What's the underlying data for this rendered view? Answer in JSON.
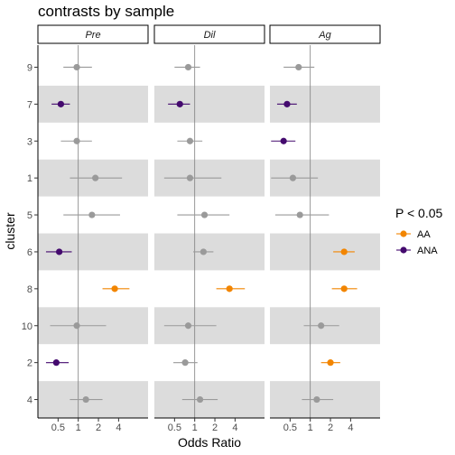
{
  "chart_data": {
    "type": "forest",
    "title": "contrasts by sample",
    "xlabel": "Odds Ratio",
    "ylabel": "cluster",
    "x_scale": "log2",
    "x_ticks": [
      0.5,
      1,
      2,
      4
    ],
    "x_tick_labels": [
      "0.5",
      "1",
      "2",
      "4"
    ],
    "xlim": [
      0.25,
      11
    ],
    "reference_line": 1,
    "clusters": [
      "9",
      "7",
      "3",
      "1",
      "5",
      "6",
      "8",
      "10",
      "2",
      "4"
    ],
    "shaded_rows": [
      "7",
      "1",
      "6",
      "10",
      "4"
    ],
    "panels": [
      {
        "name": "Pre",
        "points": [
          {
            "cluster": "9",
            "or": 0.95,
            "lo": 0.6,
            "hi": 1.6,
            "group": "ns"
          },
          {
            "cluster": "7",
            "or": 0.55,
            "lo": 0.4,
            "hi": 0.75,
            "group": "ANA"
          },
          {
            "cluster": "3",
            "or": 0.95,
            "lo": 0.55,
            "hi": 1.6,
            "group": "ns"
          },
          {
            "cluster": "1",
            "or": 1.8,
            "lo": 0.75,
            "hi": 4.5,
            "group": "ns"
          },
          {
            "cluster": "5",
            "or": 1.6,
            "lo": 0.6,
            "hi": 4.2,
            "group": "ns"
          },
          {
            "cluster": "6",
            "or": 0.52,
            "lo": 0.33,
            "hi": 0.8,
            "group": "ANA"
          },
          {
            "cluster": "8",
            "or": 3.5,
            "lo": 2.3,
            "hi": 5.8,
            "group": "AA"
          },
          {
            "cluster": "10",
            "or": 0.95,
            "lo": 0.38,
            "hi": 2.6,
            "group": "ns"
          },
          {
            "cluster": "2",
            "or": 0.47,
            "lo": 0.33,
            "hi": 0.72,
            "group": "ANA"
          },
          {
            "cluster": "4",
            "or": 1.3,
            "lo": 0.75,
            "hi": 2.3,
            "group": "ns"
          }
        ]
      },
      {
        "name": "Dil",
        "points": [
          {
            "cluster": "9",
            "or": 0.8,
            "lo": 0.5,
            "hi": 1.2,
            "group": "ns"
          },
          {
            "cluster": "7",
            "or": 0.6,
            "lo": 0.4,
            "hi": 0.85,
            "group": "ANA"
          },
          {
            "cluster": "3",
            "or": 0.85,
            "lo": 0.55,
            "hi": 1.3,
            "group": "ns"
          },
          {
            "cluster": "1",
            "or": 0.85,
            "lo": 0.35,
            "hi": 2.5,
            "group": "ns"
          },
          {
            "cluster": "5",
            "or": 1.4,
            "lo": 0.55,
            "hi": 3.3,
            "group": "ns"
          },
          {
            "cluster": "6",
            "or": 1.35,
            "lo": 0.95,
            "hi": 1.9,
            "group": "ns"
          },
          {
            "cluster": "8",
            "or": 3.3,
            "lo": 2.1,
            "hi": 5.6,
            "group": "AA"
          },
          {
            "cluster": "10",
            "or": 0.8,
            "lo": 0.35,
            "hi": 2.1,
            "group": "ns"
          },
          {
            "cluster": "2",
            "or": 0.72,
            "lo": 0.48,
            "hi": 1.1,
            "group": "ns"
          },
          {
            "cluster": "4",
            "or": 1.2,
            "lo": 0.65,
            "hi": 2.2,
            "group": "ns"
          }
        ]
      },
      {
        "name": "Ag",
        "points": [
          {
            "cluster": "9",
            "or": 0.67,
            "lo": 0.4,
            "hi": 1.15,
            "group": "ns"
          },
          {
            "cluster": "7",
            "or": 0.45,
            "lo": 0.32,
            "hi": 0.63,
            "group": "ANA"
          },
          {
            "cluster": "3",
            "or": 0.4,
            "lo": 0.26,
            "hi": 0.6,
            "group": "ANA"
          },
          {
            "cluster": "1",
            "or": 0.55,
            "lo": 0.26,
            "hi": 1.3,
            "group": "ns"
          },
          {
            "cluster": "5",
            "or": 0.7,
            "lo": 0.3,
            "hi": 1.9,
            "group": "ns"
          },
          {
            "cluster": "6",
            "or": 3.2,
            "lo": 2.2,
            "hi": 4.6,
            "group": "AA"
          },
          {
            "cluster": "8",
            "or": 3.2,
            "lo": 2.1,
            "hi": 5.0,
            "group": "AA"
          },
          {
            "cluster": "10",
            "or": 1.45,
            "lo": 0.8,
            "hi": 2.7,
            "group": "ns"
          },
          {
            "cluster": "2",
            "or": 2.0,
            "lo": 1.45,
            "hi": 2.8,
            "group": "AA"
          },
          {
            "cluster": "4",
            "or": 1.25,
            "lo": 0.75,
            "hi": 2.2,
            "group": "ns"
          }
        ]
      }
    ],
    "legend": {
      "title": "P < 0.05",
      "position": "right",
      "items": [
        {
          "label": "AA",
          "group": "AA"
        },
        {
          "label": "ANA",
          "group": "ANA"
        }
      ]
    },
    "colors": {
      "AA": "#f28500",
      "ANA": "#440a6e",
      "ns": "#9a9a9a",
      "shade": "#dcdcdc",
      "refline": "#7f7f7f"
    }
  }
}
